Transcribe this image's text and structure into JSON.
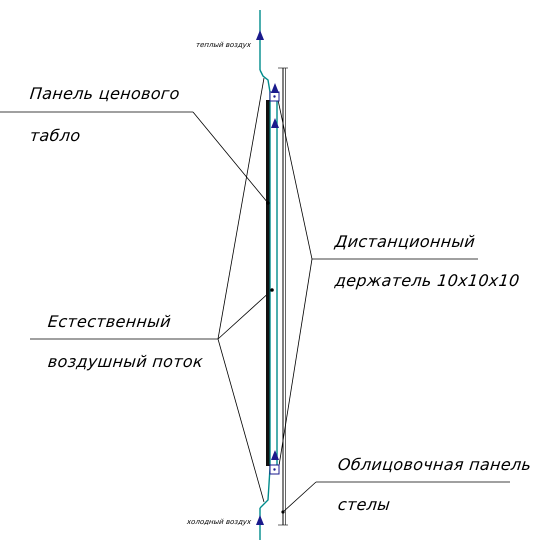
{
  "labels": {
    "warm_air": "теплый воздух",
    "cold_air": "холодный воздух",
    "panel_line1": "Панель ценового",
    "panel_line2": "табло",
    "natural_line1": "Естественный",
    "natural_line2": "воздушный поток",
    "spacer_line1": "Дистанционный",
    "spacer_line2": "держатель 10x10x10",
    "cladding_line1": "Облицовочная панель",
    "cladding_line2": "стелы"
  },
  "colors": {
    "airflow": "#008c8c",
    "arrow": "#1a1a8c",
    "panel": "#111111",
    "holder": "#1a1a8c",
    "leader": "#000000"
  }
}
